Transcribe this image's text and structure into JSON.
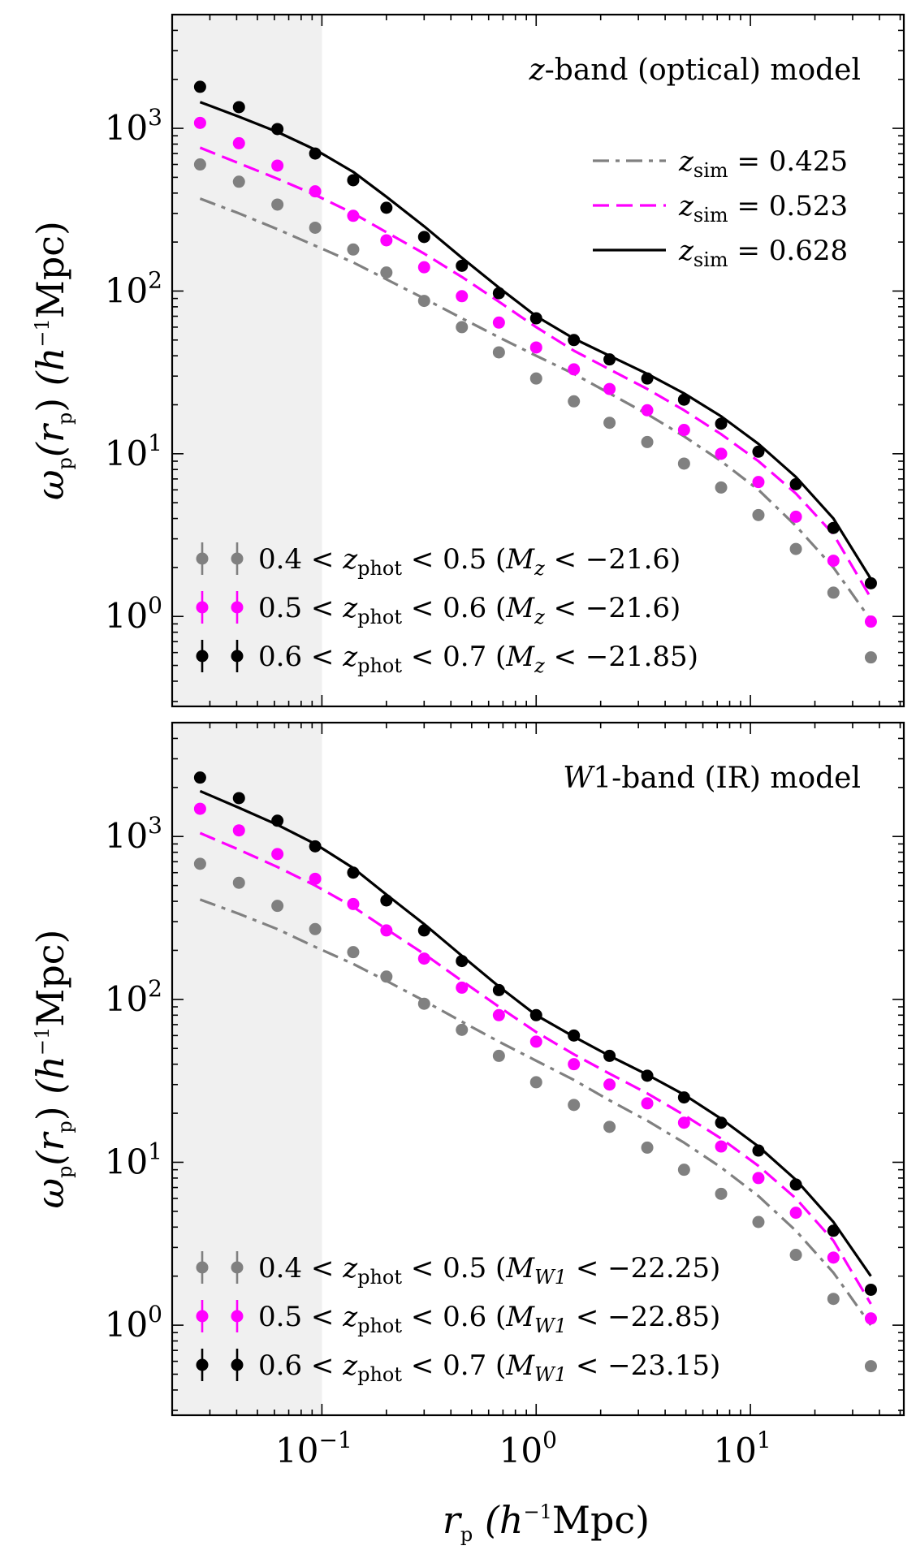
{
  "chart_data": {
    "type": "line",
    "x_label_var": "r",
    "x_label_sub": "p",
    "x_label_units_pre": "(h",
    "x_label_units_exp": "−1",
    "x_label_units_post": "Mpc)",
    "y_label_var": "ω",
    "y_label_sub": "p",
    "y_label_arg_open": "(r",
    "y_label_arg_sub": "p",
    "y_label_arg_close": ")",
    "y_label_units_pre": "(h",
    "y_label_units_exp": "−1",
    "y_label_units_post": "Mpc)",
    "x_scale": "log",
    "y_scale": "log",
    "xlim": [
      0.02,
      52
    ],
    "ylim": [
      0.28,
      5000
    ],
    "shaded_region_x": [
      0.02,
      0.1
    ],
    "x_ticks": [
      {
        "base": "10",
        "exp": "−1",
        "value": 0.1
      },
      {
        "base": "10",
        "exp": "0",
        "value": 1
      },
      {
        "base": "10",
        "exp": "1",
        "value": 10
      }
    ],
    "y_ticks": [
      {
        "base": "10",
        "exp": "0",
        "value": 1
      },
      {
        "base": "10",
        "exp": "1",
        "value": 10
      },
      {
        "base": "10",
        "exp": "2",
        "value": 100
      },
      {
        "base": "10",
        "exp": "3",
        "value": 1000
      }
    ],
    "x": [
      0.027,
      0.041,
      0.062,
      0.093,
      0.14,
      0.2,
      0.3,
      0.45,
      0.67,
      1.0,
      1.5,
      2.2,
      3.3,
      4.9,
      7.3,
      10.9,
      16.3,
      24.4,
      36.5
    ],
    "panels": [
      {
        "title_var": "z",
        "title_text": "-band (optical) model",
        "curve_legend": [
          {
            "name_var": "z",
            "name_sub": "sim",
            "name_eq": " = 0.425",
            "style": "dashdot",
            "color": "#808080"
          },
          {
            "name_var": "z",
            "name_sub": "sim",
            "name_eq": " = 0.523",
            "style": "dashed",
            "color": "#ff00ff"
          },
          {
            "name_var": "z",
            "name_sub": "sim",
            "name_eq": " = 0.628",
            "style": "solid",
            "color": "#000000"
          }
        ],
        "curves": [
          {
            "color": "#808080",
            "style": "dashdot",
            "values": [
              370,
              300,
              240,
              190,
              150,
              118,
              90,
              68,
              52,
              40,
              31,
              23.5,
              17.5,
              12.8,
              9.0,
              6.0,
              3.6,
              2.0,
              0.95
            ]
          },
          {
            "color": "#ff00ff",
            "style": "dashed",
            "values": [
              760,
              610,
              490,
              390,
              300,
              230,
              170,
              122,
              86,
              60,
              43,
              33,
              25,
              18.5,
              13.2,
              9.0,
              5.7,
              3.2,
              1.3
            ]
          },
          {
            "color": "#000000",
            "style": "solid",
            "values": [
              1450,
              1180,
              950,
              740,
              540,
              380,
              250,
              160,
              105,
              70,
              51,
              40,
              31,
              23.5,
              17.0,
              11.5,
              7.2,
              4.0,
              1.7
            ]
          }
        ],
        "point_legend": [
          {
            "lo": "0.4",
            "hi": "0.5",
            "mvar": "M",
            "msub": "z",
            "mval": "−21.6",
            "color": "#808080"
          },
          {
            "lo": "0.5",
            "hi": "0.6",
            "mvar": "M",
            "msub": "z",
            "mval": "−21.6",
            "color": "#ff00ff"
          },
          {
            "lo": "0.6",
            "hi": "0.7",
            "mvar": "M",
            "msub": "z",
            "mval": "−21.85",
            "color": "#000000"
          }
        ],
        "points": [
          {
            "color": "#808080",
            "values": [
              600,
              470,
              340,
              245,
              180,
              130,
              87,
              60,
              42,
              29,
              21,
              15.5,
              11.8,
              8.7,
              6.2,
              4.2,
              2.6,
              1.4,
              0.56
            ]
          },
          {
            "color": "#ff00ff",
            "values": [
              1080,
              810,
              590,
              410,
              290,
              205,
              140,
              93,
              64,
              45,
              33,
              25,
              18.5,
              14,
              10,
              6.7,
              4.1,
              2.2,
              0.93
            ]
          },
          {
            "color": "#000000",
            "values": [
              1800,
              1350,
              990,
              700,
              480,
              325,
              215,
              143,
              97,
              68,
              50,
              38,
              29,
              21.5,
              15.3,
              10.3,
              6.5,
              3.5,
              1.6
            ]
          }
        ]
      },
      {
        "title_var": "W",
        "title_text": "1-band (IR) model",
        "curve_legend": [],
        "curves": [
          {
            "color": "#808080",
            "style": "dashdot",
            "values": [
              410,
              335,
              270,
              210,
              165,
              130,
              98,
              73,
              55,
              42,
              32,
              24,
              18,
              13.2,
              9.3,
              6.2,
              3.8,
              2.1,
              1.0
            ]
          },
          {
            "color": "#ff00ff",
            "style": "dashed",
            "values": [
              1050,
              830,
              650,
              500,
              370,
              270,
              190,
              130,
              90,
              63,
              46,
              35,
              26.5,
              19.5,
              14,
              9.5,
              6.0,
              3.3,
              1.35
            ]
          },
          {
            "color": "#000000",
            "style": "solid",
            "values": [
              1900,
              1500,
              1180,
              900,
              640,
              440,
              290,
              185,
              120,
              80,
              59,
              45,
              34.5,
              26,
              18.5,
              12.5,
              7.8,
              4.3,
              2.0
            ]
          }
        ],
        "point_legend": [
          {
            "lo": "0.4",
            "hi": "0.5",
            "mvar": "M",
            "msub": "W1",
            "mval": "−22.25",
            "color": "#808080"
          },
          {
            "lo": "0.5",
            "hi": "0.6",
            "mvar": "M",
            "msub": "W1",
            "mval": "−22.85",
            "color": "#ff00ff"
          },
          {
            "lo": "0.6",
            "hi": "0.7",
            "mvar": "M",
            "msub": "W1",
            "mval": "−23.15",
            "color": "#000000"
          }
        ],
        "points": [
          {
            "color": "#808080",
            "values": [
              680,
              520,
              375,
              270,
              195,
              138,
              94,
              65,
              45,
              31,
              22.5,
              16.5,
              12.3,
              9.0,
              6.4,
              4.3,
              2.7,
              1.45,
              0.56
            ]
          },
          {
            "color": "#ff00ff",
            "values": [
              1480,
              1090,
              780,
              550,
              385,
              265,
              178,
              118,
              80,
              55,
              40,
              30,
              23,
              17.5,
              12.5,
              8.0,
              4.9,
              2.6,
              1.1
            ]
          },
          {
            "color": "#000000",
            "values": [
              2300,
              1720,
              1250,
              870,
              600,
              405,
              265,
              172,
              114,
              80,
              60,
              45,
              34,
              25,
              17.5,
              11.8,
              7.3,
              3.8,
              1.65
            ]
          }
        ]
      }
    ]
  }
}
